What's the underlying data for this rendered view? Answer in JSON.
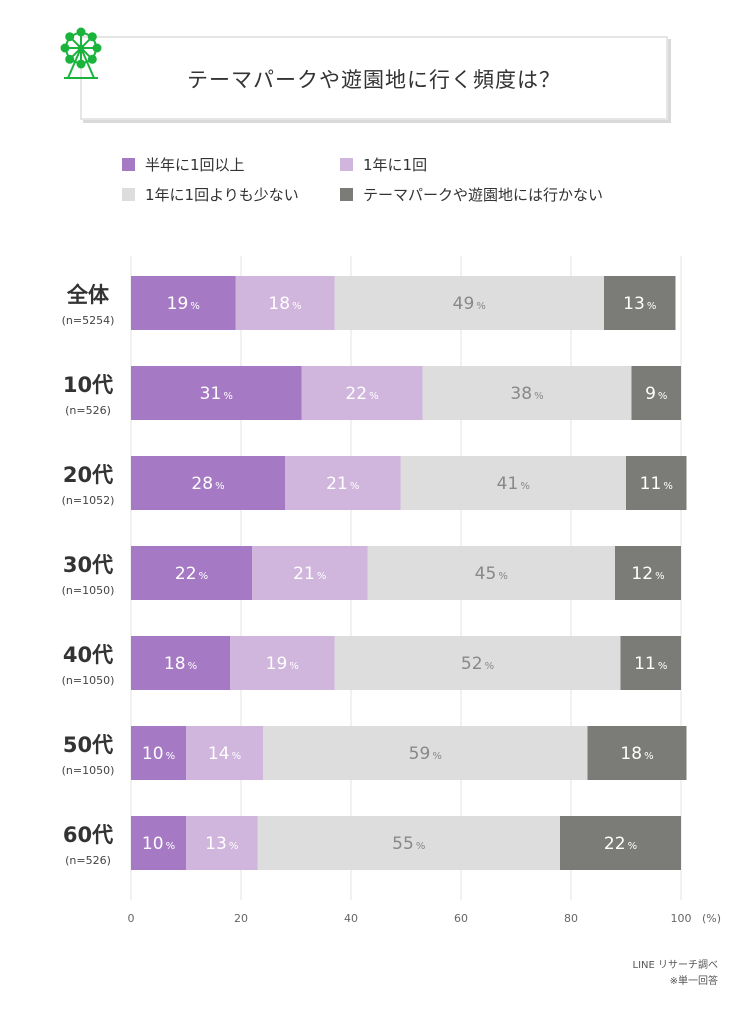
{
  "title": "テーマパークや遊園地に行く頻度は？",
  "icon": "ferris-wheel-icon",
  "colors": {
    "accent": "#1ab33c"
  },
  "source": "LINE リサーチ調べ",
  "note": "※単一回答",
  "chart_data": {
    "type": "bar",
    "orientation": "horizontal",
    "stacked": true,
    "categories": [
      "全体",
      "10代",
      "20代",
      "30代",
      "40代",
      "50代",
      "60代"
    ],
    "category_notes": [
      "(n=5254)",
      "(n=526)",
      "(n=1052)",
      "(n=1050)",
      "(n=1050)",
      "(n=1050)",
      "(n=526)"
    ],
    "series": [
      {
        "name": "半年に1回以上",
        "color": "#a679c4",
        "label_color": "#ffffff",
        "values": [
          19,
          31,
          28,
          22,
          18,
          10,
          10
        ]
      },
      {
        "name": "1年に1回",
        "color": "#d0b5dd",
        "label_color": "#ffffff",
        "values": [
          18,
          22,
          21,
          21,
          19,
          14,
          13
        ]
      },
      {
        "name": "1年に1回よりも少ない",
        "color": "#dddddd",
        "label_color": "#888888",
        "values": [
          49,
          38,
          41,
          45,
          52,
          59,
          55
        ]
      },
      {
        "name": "テーマパークや遊園地には行かない",
        "color": "#7b7b78",
        "label_color": "#ffffff",
        "values": [
          13,
          9,
          11,
          12,
          11,
          18,
          22
        ]
      }
    ],
    "value_suffix": "%",
    "x_ticks": [
      "0",
      "20",
      "40",
      "60",
      "80",
      "100"
    ],
    "x_unit": "(%)",
    "xlim": [
      0,
      100
    ],
    "grid": true,
    "legend_position": "top"
  }
}
